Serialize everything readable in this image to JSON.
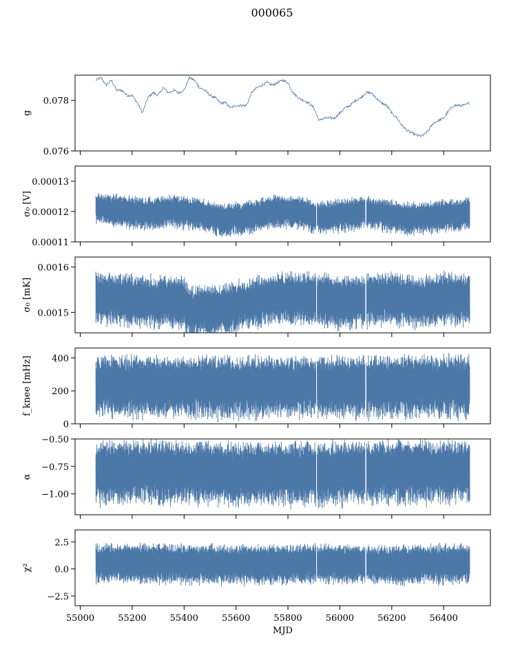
{
  "figure": {
    "title": "000065"
  },
  "colors": {
    "series": "#4c78a8",
    "frame": "#000000"
  },
  "chart_data": [
    {
      "type": "line",
      "ylabel": "g",
      "xlim": [
        54980,
        56580
      ],
      "ylim": [
        0.076,
        0.079
      ],
      "yticks": [
        "0.076",
        "0.078"
      ],
      "ytick_values": [
        0.076,
        0.078
      ],
      "style": "thin-line",
      "x": [
        55060,
        55080,
        55100,
        55120,
        55140,
        55160,
        55180,
        55200,
        55220,
        55240,
        55260,
        55280,
        55300,
        55320,
        55340,
        55360,
        55380,
        55400,
        55420,
        55440,
        55460,
        55480,
        55500,
        55520,
        55540,
        55560,
        55580,
        55600,
        55620,
        55640,
        55660,
        55680,
        55700,
        55720,
        55740,
        55760,
        55780,
        55800,
        55820,
        55840,
        55860,
        55880,
        55900,
        55920,
        55940,
        55960,
        55980,
        56000,
        56020,
        56040,
        56060,
        56080,
        56100,
        56120,
        56140,
        56160,
        56180,
        56200,
        56220,
        56240,
        56260,
        56280,
        56300,
        56320,
        56340,
        56360,
        56380,
        56400,
        56420,
        56440,
        56460,
        56480,
        56500
      ],
      "y": [
        0.0788,
        0.0789,
        0.0786,
        0.0788,
        0.0784,
        0.0784,
        0.0782,
        0.0782,
        0.0779,
        0.0775,
        0.0781,
        0.0783,
        0.0782,
        0.0785,
        0.0783,
        0.0784,
        0.0783,
        0.0784,
        0.0789,
        0.0788,
        0.0785,
        0.0784,
        0.0782,
        0.0781,
        0.0779,
        0.0779,
        0.0777,
        0.0778,
        0.0778,
        0.0778,
        0.0783,
        0.0785,
        0.0786,
        0.0787,
        0.0786,
        0.0787,
        0.0788,
        0.0787,
        0.0783,
        0.0781,
        0.078,
        0.0779,
        0.0777,
        0.0772,
        0.0773,
        0.0773,
        0.0773,
        0.0775,
        0.0777,
        0.0778,
        0.078,
        0.0781,
        0.0783,
        0.0783,
        0.0781,
        0.0779,
        0.0778,
        0.0775,
        0.0773,
        0.077,
        0.0768,
        0.0767,
        0.0766,
        0.0766,
        0.0768,
        0.0771,
        0.0772,
        0.0773,
        0.0776,
        0.0778,
        0.0778,
        0.0778,
        0.0779
      ]
    },
    {
      "type": "line",
      "ylabel": "σ₀ [V]",
      "xlim": [
        54980,
        56580
      ],
      "ylim": [
        0.00011,
        0.000135
      ],
      "yticks": [
        "0.00011",
        "0.00012",
        "0.00013"
      ],
      "ytick_values": [
        0.00011,
        0.00012,
        0.00013
      ],
      "style": "dense-band",
      "x": [
        55060,
        55150,
        55250,
        55350,
        55450,
        55550,
        55650,
        55750,
        55850,
        55900,
        55950,
        56050,
        56100,
        56150,
        56250,
        56350,
        56450,
        56500
      ],
      "y": [
        0.0001215,
        0.0001205,
        0.0001195,
        0.0001205,
        0.0001195,
        0.0001175,
        0.0001185,
        0.0001205,
        0.00012,
        0.0001185,
        0.0001185,
        0.0001195,
        0.00012,
        0.0001195,
        0.000118,
        0.0001185,
        0.000119,
        0.00012
      ],
      "band": [
        0.0001165,
        0.0001245
      ],
      "gaps": [
        55910,
        56100
      ]
    },
    {
      "type": "line",
      "ylabel": "σ₀ [mK]",
      "xlim": [
        54980,
        56580
      ],
      "ylim": [
        0.001455,
        0.001622
      ],
      "yticks": [
        "0.0015",
        "0.0016"
      ],
      "ytick_values": [
        0.0015,
        0.0016
      ],
      "style": "dense-band",
      "x": [
        55060,
        55200,
        55400,
        55420,
        55500,
        55600,
        55700,
        55800,
        55900,
        56000,
        56100,
        56200,
        56300,
        56400,
        56500
      ],
      "y": [
        0.001535,
        0.00153,
        0.001525,
        0.001505,
        0.001505,
        0.001515,
        0.00153,
        0.001535,
        0.001535,
        0.001525,
        0.00153,
        0.001535,
        0.001525,
        0.001535,
        0.00153
      ],
      "band": [
        0.001495,
        0.00158
      ],
      "gaps": [
        55910,
        56100
      ]
    },
    {
      "type": "line",
      "ylabel": "f_knee [mHz]",
      "xlim": [
        54980,
        56580
      ],
      "ylim": [
        0,
        460
      ],
      "yticks": [
        "0",
        "200",
        "400"
      ],
      "ytick_values": [
        0,
        200,
        400
      ],
      "style": "dense-band",
      "x": [
        55060,
        55300,
        55600,
        55900,
        56200,
        56500
      ],
      "y": [
        240,
        240,
        235,
        235,
        240,
        240
      ],
      "band": [
        100,
        380
      ],
      "gaps": [
        55910,
        56100
      ]
    },
    {
      "type": "line",
      "ylabel": "α",
      "xlim": [
        54980,
        56580
      ],
      "ylim": [
        -1.19,
        -0.5
      ],
      "yticks": [
        "−1.00",
        "−0.75",
        "−0.50"
      ],
      "ytick_values": [
        -1.0,
        -0.75,
        -0.5
      ],
      "style": "dense-band",
      "x": [
        55060,
        55300,
        55600,
        55900,
        56200,
        56500
      ],
      "y": [
        -0.8,
        -0.78,
        -0.8,
        -0.8,
        -0.78,
        -0.78
      ],
      "band": [
        -1.05,
        -0.62
      ],
      "gaps": [
        55910,
        56100
      ]
    },
    {
      "type": "line",
      "ylabel": "χ²",
      "xlim": [
        54980,
        56580
      ],
      "ylim": [
        -3.4,
        3.6
      ],
      "yticks": [
        "−2.5",
        "0.0",
        "2.5"
      ],
      "ytick_values": [
        -2.5,
        0.0,
        2.5
      ],
      "xticks": [
        "55000",
        "55200",
        "55400",
        "55600",
        "55800",
        "56000",
        "56200",
        "56400"
      ],
      "xtick_values": [
        55000,
        55200,
        55400,
        55600,
        55800,
        56000,
        56200,
        56400
      ],
      "xlabel": "MJD",
      "style": "dense-band",
      "x": [
        55060,
        55300,
        55600,
        55900,
        56200,
        56500
      ],
      "y": [
        0.6,
        0.6,
        0.5,
        0.6,
        0.5,
        0.6
      ],
      "band": [
        -0.8,
        1.9
      ],
      "gaps": [
        55910,
        56100
      ]
    }
  ]
}
